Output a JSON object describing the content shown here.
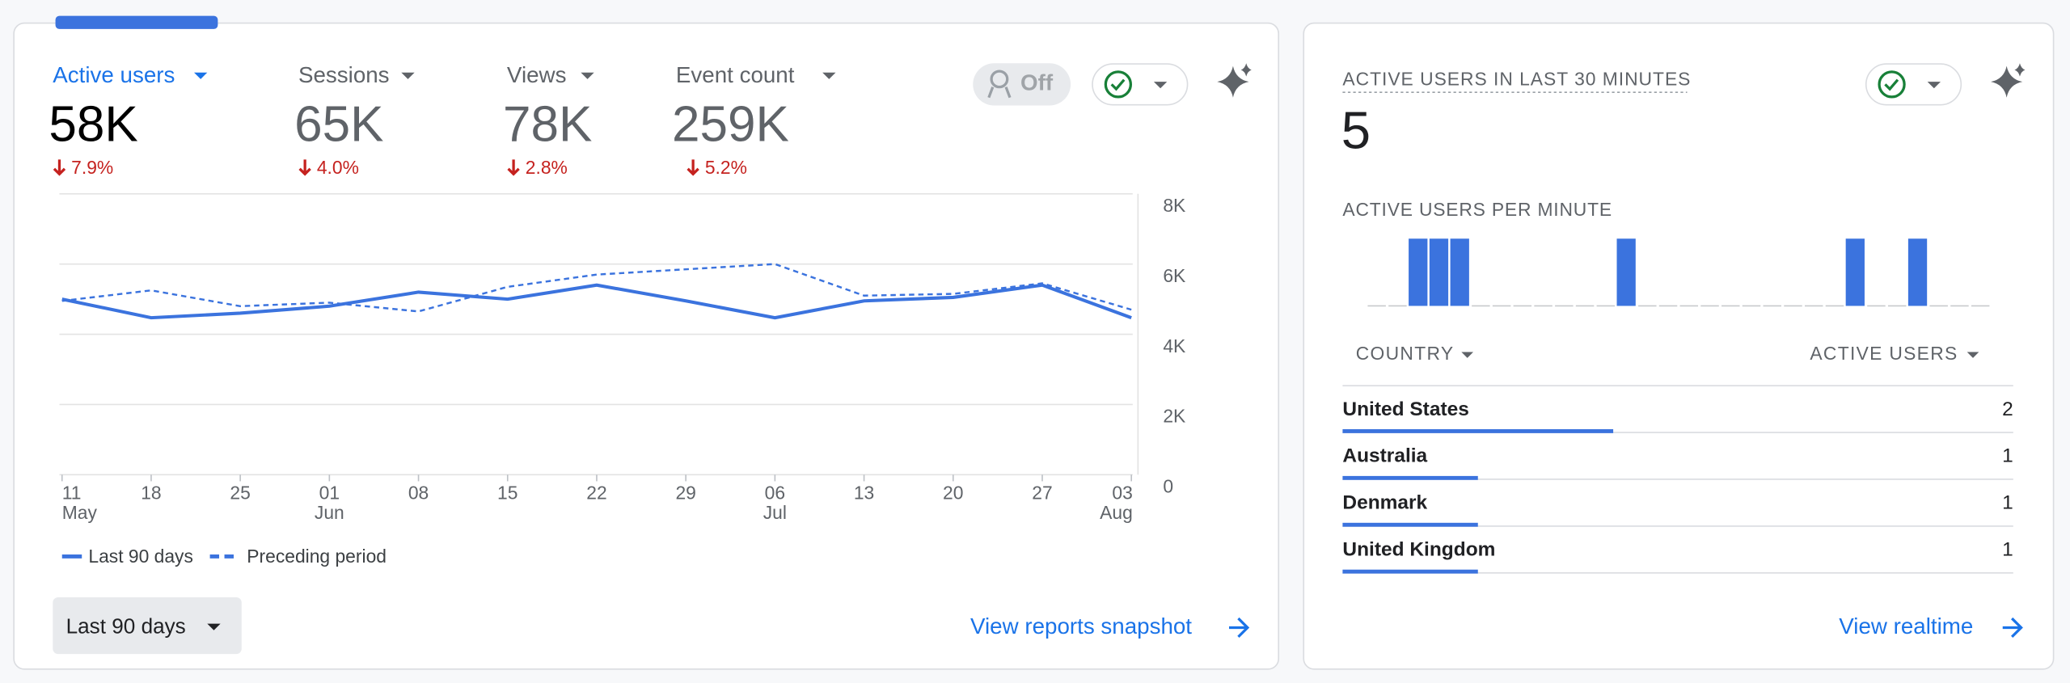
{
  "overview": {
    "metrics": [
      {
        "label": "Active users",
        "value": "58K",
        "change": "7.9%"
      },
      {
        "label": "Sessions",
        "value": "65K",
        "change": "4.0%"
      },
      {
        "label": "Views",
        "value": "78K",
        "change": "2.8%"
      },
      {
        "label": "Event count",
        "value": "259K",
        "change": "5.2%"
      }
    ],
    "toggle": "Off",
    "date_range": "Last 90 days",
    "link": "View reports snapshot"
  },
  "chart_data": [
    {
      "type": "line",
      "categories": [
        "11 May",
        "18",
        "25",
        "01 Jun",
        "08",
        "15",
        "22",
        "29",
        "06 Jul",
        "13",
        "20",
        "27",
        "03 Aug"
      ],
      "series": [
        {
          "name": "Last 90 days",
          "color": "#3b73de",
          "dash": false,
          "values": [
            5000,
            4470,
            4600,
            4800,
            5200,
            5000,
            5400,
            4950,
            4470,
            4950,
            5050,
            5400,
            4470
          ]
        },
        {
          "name": "Preceding period",
          "color": "#3b73de",
          "dash": true,
          "values": [
            4950,
            5250,
            4800,
            4900,
            4650,
            5350,
            5700,
            5850,
            6000,
            5100,
            5150,
            5450,
            4700
          ]
        }
      ],
      "ylim": [
        0,
        8000
      ],
      "yticks": [
        0,
        {
          "value": 2000,
          "label": "2K"
        },
        {
          "value": 4000,
          "label": "4K"
        },
        {
          "value": 6000,
          "label": "6K"
        },
        {
          "value": 8000,
          "label": "8K"
        }
      ],
      "grid": true
    },
    {
      "type": "bar",
      "title": "ACTIVE USERS PER MINUTE",
      "color": "#3b73de",
      "values": [
        0,
        0,
        1,
        1,
        1,
        0,
        0,
        0,
        0,
        0,
        0,
        0,
        1,
        0,
        0,
        0,
        0,
        0,
        0,
        0,
        0,
        0,
        0,
        1,
        0,
        0,
        1,
        0,
        0,
        0
      ]
    }
  ],
  "realtime": {
    "title": "ACTIVE USERS IN LAST 30 MINUTES",
    "value": 5,
    "table": {
      "columns": [
        "COUNTRY",
        "ACTIVE USERS"
      ],
      "rows": [
        [
          "United States",
          2
        ],
        [
          "Australia",
          1
        ],
        [
          "Denmark",
          1
        ],
        [
          "United Kingdom",
          1
        ]
      ]
    },
    "link": "View realtime"
  }
}
